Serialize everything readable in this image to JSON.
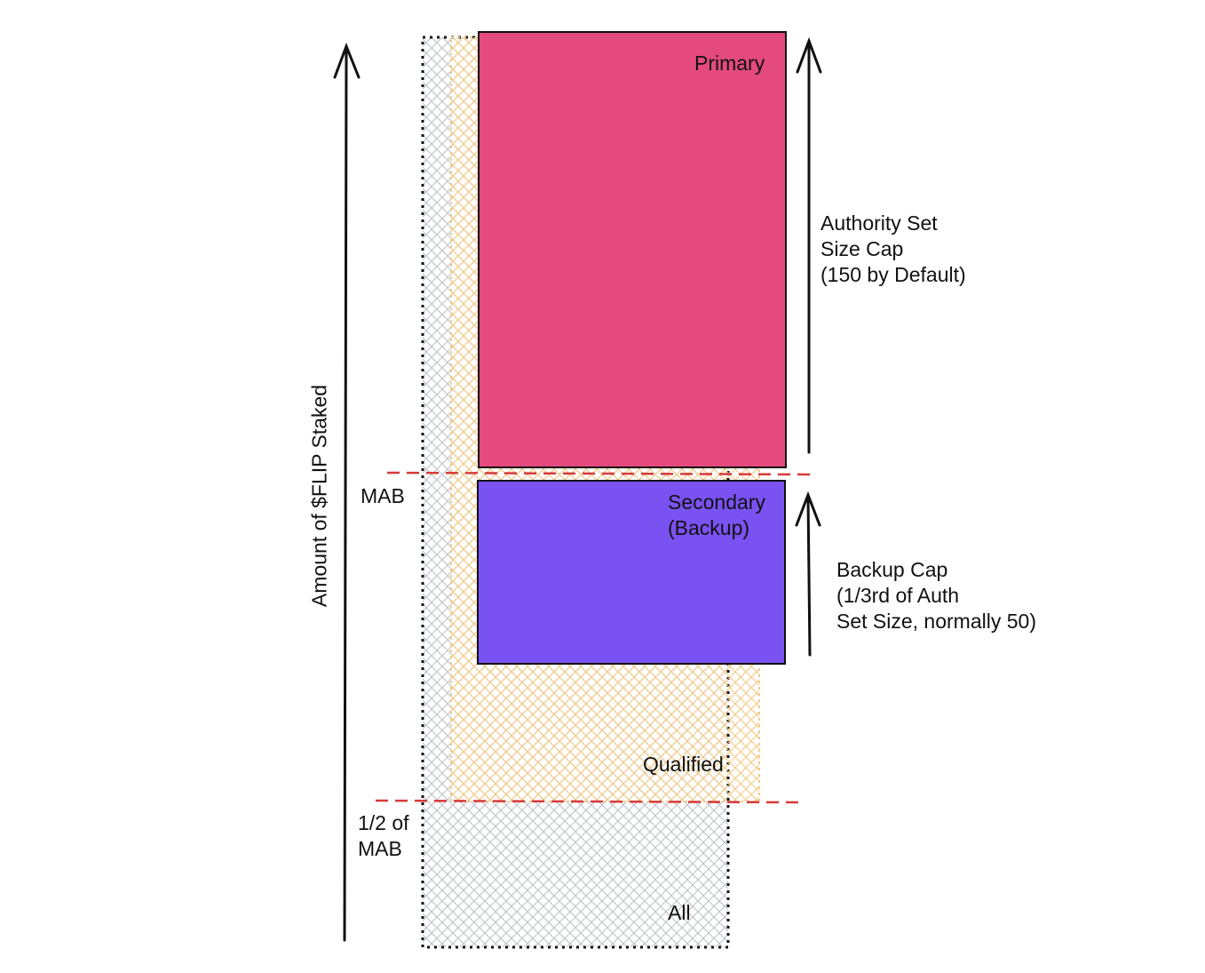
{
  "labels": {
    "primary": "Primary",
    "secondary": "Secondary\n(Backup)",
    "qualified": "Qualified",
    "all": "All",
    "mab": "MAB",
    "half_mab": "1/2 of\nMAB",
    "authority_cap": "Authority Set\nSize Cap\n(150 by Default)",
    "backup_cap": "Backup Cap\n(1/3rd of Auth\nSet Size, normally 50)",
    "y_axis": "Amount of $FLIP Staked"
  },
  "colors": {
    "primary_fill": "#e44a7e",
    "secondary_fill": "#7a52f2",
    "qualified_hatch": "#f5c77a",
    "all_hatch": "#b8bfc8",
    "threshold_line": "#d63a3a",
    "outline": "#111111"
  }
}
